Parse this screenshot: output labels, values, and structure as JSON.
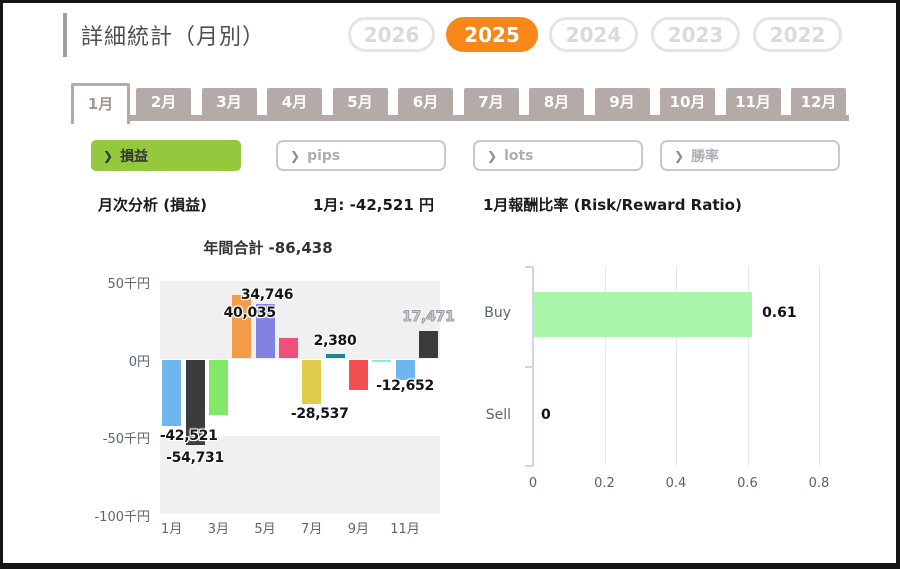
{
  "title": "詳細統計（月別）",
  "year_tabs": {
    "items": [
      {
        "label": "2026",
        "active": false
      },
      {
        "label": "2025",
        "active": true
      },
      {
        "label": "2024",
        "active": false
      },
      {
        "label": "2023",
        "active": false
      },
      {
        "label": "2022",
        "active": false
      }
    ]
  },
  "month_tabs": {
    "items": [
      {
        "label": "1月",
        "active": true
      },
      {
        "label": "2月",
        "active": false
      },
      {
        "label": "3月",
        "active": false
      },
      {
        "label": "4月",
        "active": false
      },
      {
        "label": "5月",
        "active": false
      },
      {
        "label": "6月",
        "active": false
      },
      {
        "label": "7月",
        "active": false
      },
      {
        "label": "8月",
        "active": false
      },
      {
        "label": "9月",
        "active": false
      },
      {
        "label": "10月",
        "active": false
      },
      {
        "label": "11月",
        "active": false
      },
      {
        "label": "12月",
        "active": false
      }
    ]
  },
  "filters": {
    "chevron": "❯",
    "items": [
      {
        "label": "損益",
        "active": true
      },
      {
        "label": "pips",
        "active": false
      },
      {
        "label": "lots",
        "active": false
      },
      {
        "label": "勝率",
        "active": false
      }
    ]
  },
  "headers": {
    "left": "月次分析 (損益)",
    "center": "1月: -42,521 円"
  },
  "colors": {
    "accent_orange": "#f8871a",
    "accent_green": "#94c83d",
    "tab_brown": "#b4aaa7",
    "band_gray": "#f1f0f0",
    "buy_bar_green": "#a9f6a9"
  },
  "chart_data": [
    {
      "type": "bar",
      "title": "年間合計 -86,438",
      "annual_total": -86438,
      "ylim": [
        -100000,
        50000
      ],
      "y_ticks": [
        {
          "v": 50000,
          "label": "50千円"
        },
        {
          "v": 0,
          "label": "0円"
        },
        {
          "v": -50000,
          "label": "-50千円"
        },
        {
          "v": -100000,
          "label": "-100千円"
        }
      ],
      "x_tick_labels": [
        "1月",
        "3月",
        "5月",
        "7月",
        "9月",
        "11月"
      ],
      "categories": [
        "1月",
        "2月",
        "3月",
        "4月",
        "5月",
        "6月",
        "7月",
        "8月",
        "9月",
        "10月",
        "11月",
        "12月"
      ],
      "bars": [
        {
          "month": "1月",
          "value": -42521,
          "label": "-42,521",
          "color": "#6fb6ee",
          "dx": 17,
          "dy": 0
        },
        {
          "month": "2月",
          "value": -54731,
          "label": "-54,731",
          "color": "#3b3b3d",
          "dx": 0,
          "dy": 3
        },
        {
          "month": "3月",
          "value": -35000,
          "label": null,
          "color": "#82e868"
        },
        {
          "month": "4月",
          "value": 40035,
          "label": "40,035",
          "color": "#f59a47",
          "dx": 8,
          "dy": 27
        },
        {
          "month": "5月",
          "value": 34746,
          "label": "34,746",
          "color": "#8181e0",
          "dx": 2,
          "dy": 0
        },
        {
          "month": "6月",
          "value": 12400,
          "label": null,
          "color": "#ee5079"
        },
        {
          "month": "7月",
          "value": -28537,
          "label": "-28,537",
          "color": "#e0cb4c",
          "dx": 8,
          "dy": 0
        },
        {
          "month": "8月",
          "value": 2380,
          "label": "2,380",
          "color": "#17898d",
          "dx": 0,
          "dy": -4
        },
        {
          "month": "9月",
          "value": -19500,
          "label": null,
          "color": "#f25050"
        },
        {
          "month": "10月",
          "value": -529,
          "label": null,
          "color": "#8aeae2"
        },
        {
          "month": "11月",
          "value": -12652,
          "label": "-12,652",
          "color": "#6fb6ee",
          "dx": 0,
          "dy": -4
        },
        {
          "month": "12月",
          "value": 17471,
          "label": "17,471",
          "color": "#3b3b3d",
          "dx": 0,
          "dy": -5,
          "label_style": "outline"
        }
      ]
    },
    {
      "type": "bar_horizontal",
      "title": "1月報酬比率 (Risk/Reward Ratio)",
      "categories": [
        "Buy",
        "Sell"
      ],
      "values": [
        0.61,
        0
      ],
      "value_labels": [
        "0.61",
        "0"
      ],
      "x_ticks": [
        "0",
        "0.2",
        "0.4",
        "0.6",
        "0.8"
      ],
      "xlim": [
        0,
        0.9
      ],
      "grid": true
    }
  ]
}
